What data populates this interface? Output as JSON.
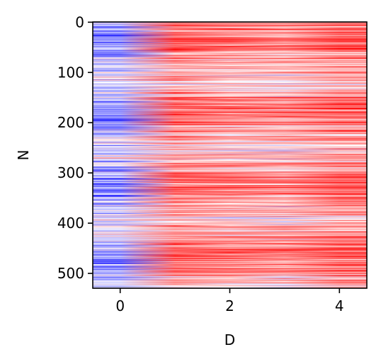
{
  "chart_data": {
    "type": "heatmap",
    "title": "",
    "xlabel": "D",
    "ylabel": "N",
    "colormap": "bwr",
    "colormap_colors": [
      "#0000ff",
      "#ffffff",
      "#ff0000"
    ],
    "xlim": [
      -0.5,
      4.5
    ],
    "ylim": [
      529.5,
      -0.5
    ],
    "x": [
      0,
      1,
      2,
      3,
      4
    ],
    "rows": 530,
    "xticks": [
      0,
      2,
      4
    ],
    "xtick_labels": [
      "0",
      "2",
      "4"
    ],
    "yticks": [
      0,
      100,
      200,
      300,
      400,
      500
    ],
    "ytick_labels": [
      "0",
      "100",
      "200",
      "300",
      "400",
      "500"
    ],
    "column_mean_values": [
      -0.3,
      0.45,
      0.35,
      0.3,
      0.45
    ],
    "grid": false
  }
}
